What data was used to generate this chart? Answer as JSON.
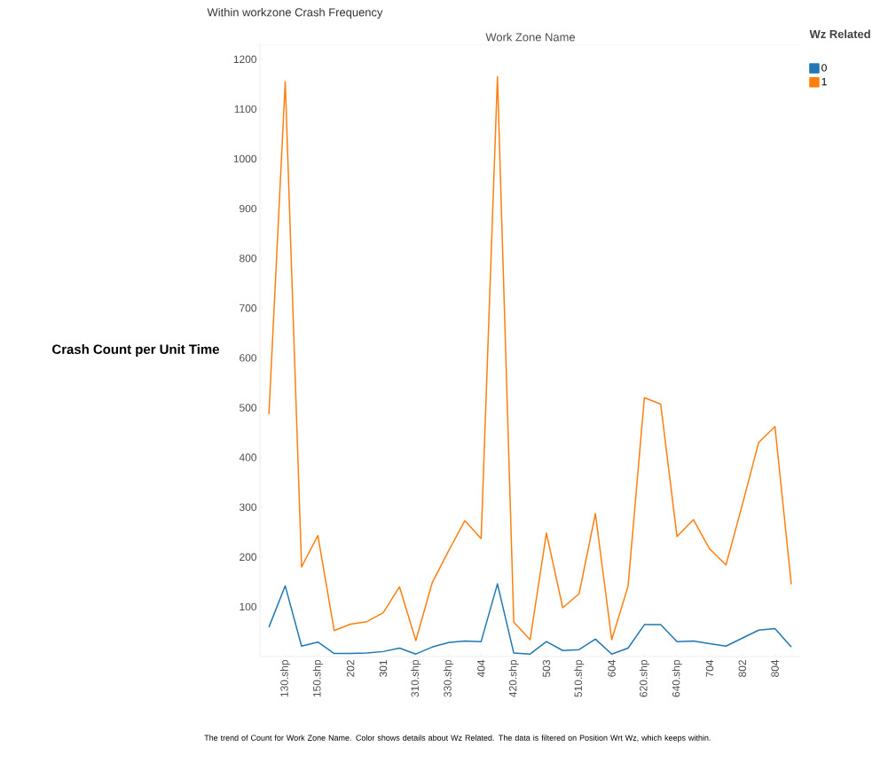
{
  "chart_data": {
    "type": "line",
    "title": "Within workzone Crash Frequency",
    "xlabel": "Work Zone Name",
    "ylabel": "Crash Count per Unit Time",
    "legend_title": "Wz Related",
    "legend": "top right",
    "categories": [
      null,
      "130.shp",
      null,
      "150.shp",
      null,
      "202",
      null,
      "301",
      null,
      "310.shp",
      null,
      "330.shp",
      null,
      "404",
      null,
      "420.shp",
      null,
      "503",
      null,
      "510.shp",
      null,
      "604",
      null,
      "620.shp",
      null,
      "640.shp",
      null,
      "704",
      null,
      "802",
      null,
      "804",
      null
    ],
    "series": [
      {
        "name": "0",
        "color": "#1f77b4",
        "values": [
          59,
          142,
          21,
          29,
          6,
          6,
          7,
          10,
          17,
          5,
          19,
          28,
          31,
          30,
          146,
          7,
          5,
          30,
          12,
          14,
          35,
          5,
          17,
          64,
          64,
          30,
          31,
          26,
          21,
          37,
          53,
          56,
          19
        ]
      },
      {
        "name": "1",
        "color": "#ff7f0e",
        "values": [
          487,
          1155,
          180,
          243,
          52,
          65,
          70,
          88,
          140,
          32,
          148,
          212,
          273,
          237,
          1165,
          69,
          34,
          248,
          98,
          126,
          287,
          34,
          141,
          520,
          507,
          241,
          275,
          216,
          184,
          305,
          430,
          462,
          145
        ]
      }
    ],
    "ylim": [
      0,
      1230
    ],
    "yticks": [
      100,
      200,
      300,
      400,
      500,
      600,
      700,
      800,
      900,
      1000,
      1100,
      1200
    ],
    "annotations": [
      "The trend of Count for Work Zone Name. Color shows details about Wz Related. The data is filtered on Position Wrt Wz, which keeps within."
    ]
  }
}
